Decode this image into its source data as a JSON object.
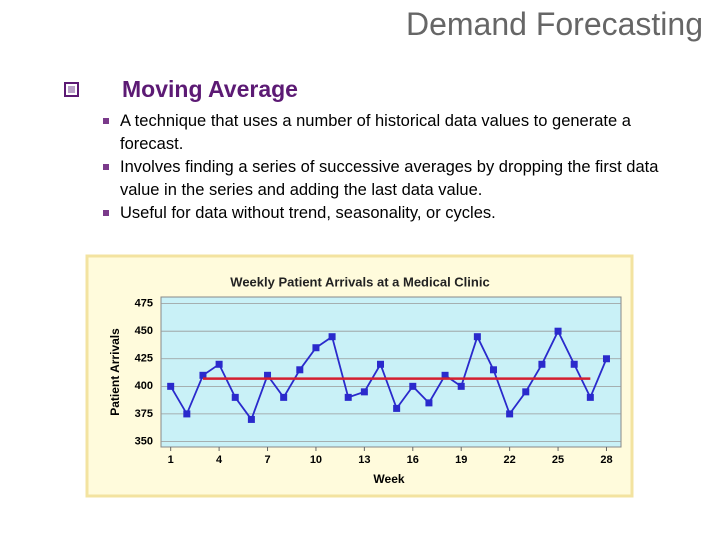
{
  "header": {
    "title": "Demand Forecasting"
  },
  "section": {
    "heading": "Moving Average",
    "bullets": [
      "A technique that uses a number of historical data values to generate a forecast.",
      "Involves finding a series of successive averages by dropping the first data value in the series and adding the last data value.",
      "Useful for data without trend, seasonality, or cycles."
    ]
  },
  "chart_data": {
    "type": "line",
    "title": "Weekly Patient Arrivals at a Medical Clinic",
    "x_label": "Week",
    "y_label": "Patient Arrivals",
    "x": [
      1,
      2,
      3,
      4,
      5,
      6,
      7,
      8,
      9,
      10,
      11,
      12,
      13,
      14,
      15,
      16,
      17,
      18,
      19,
      20,
      21,
      22,
      23,
      24,
      25,
      26,
      27,
      28
    ],
    "series": [
      {
        "color": "#2a2acc",
        "values": [
          400,
          375,
          410,
          420,
          390,
          370,
          410,
          390,
          415,
          435,
          445,
          390,
          395,
          420,
          380,
          400,
          385,
          410,
          400,
          445,
          415,
          375,
          395,
          420,
          450,
          420,
          390,
          425
        ]
      },
      {
        "color": "#d42030",
        "values": [
          null,
          null,
          407,
          407,
          407,
          407,
          407,
          407,
          407,
          407,
          407,
          407,
          407,
          407,
          407,
          407,
          407,
          407,
          407,
          407,
          407,
          407,
          407,
          407,
          407,
          407,
          407,
          null
        ]
      }
    ],
    "xlim": [
      0.4,
      28.9
    ],
    "xticks": [
      1,
      4,
      7,
      10,
      13,
      16,
      19,
      22,
      25,
      28
    ],
    "ylim": [
      345,
      481
    ],
    "yticks": [
      350,
      375,
      400,
      425,
      450,
      475
    ],
    "grid": true,
    "plot_color": "#c9f1f7"
  }
}
